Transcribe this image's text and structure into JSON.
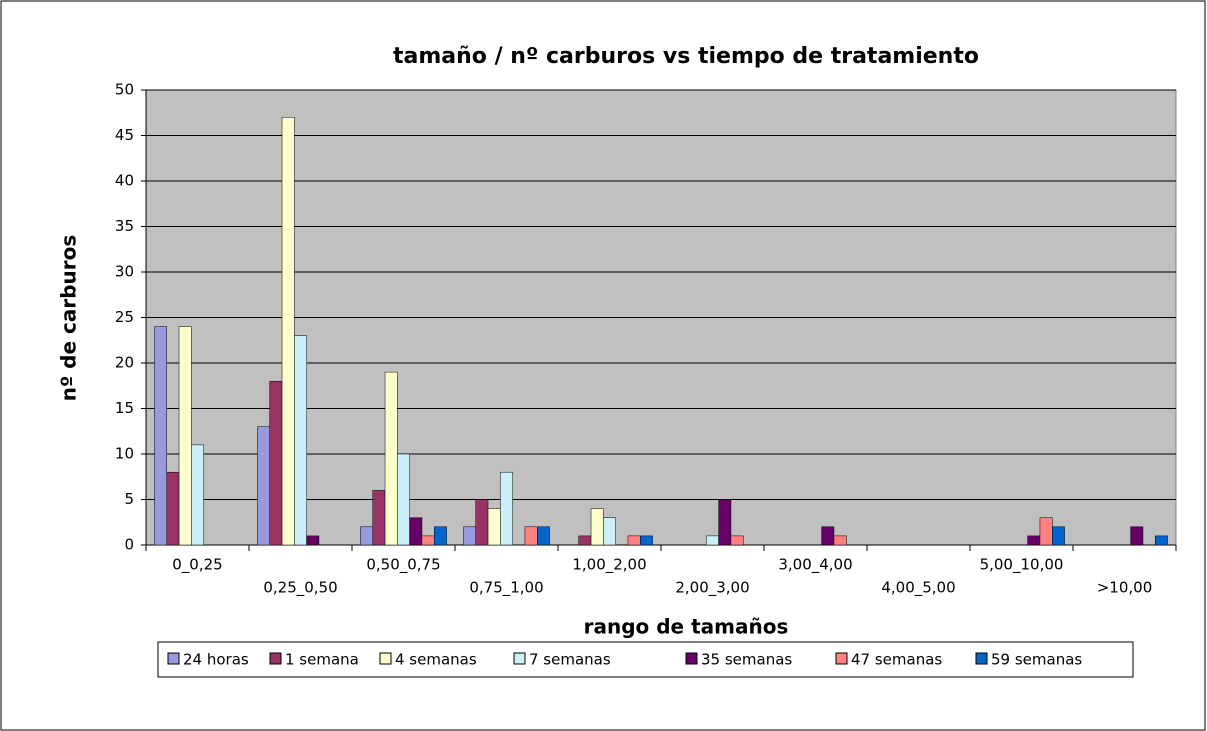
{
  "chart_data": {
    "type": "bar",
    "title": "tamaño / nº carburos vs tiempo de tratamiento",
    "x_label": "rango de tamaños",
    "y_label": "nº de carburos",
    "categories": [
      "0_0,25",
      "0,25_0,50",
      "0,50_0,75",
      "0,75_1,00",
      "1,00_2,00",
      "2,00_3,00",
      "3,00_4,00",
      "4,00_5,00",
      "5,00_10,00",
      ">10,00"
    ],
    "series": [
      {
        "name": "24 horas",
        "color": "#9999dd",
        "values": [
          24,
          13,
          2,
          2,
          0,
          0,
          0,
          0,
          0,
          0
        ]
      },
      {
        "name": "1 semana",
        "color": "#993366",
        "values": [
          8,
          18,
          6,
          5,
          1,
          0,
          0,
          0,
          0,
          0
        ]
      },
      {
        "name": "4 semanas",
        "color": "#ffffcc",
        "values": [
          24,
          47,
          19,
          4,
          4,
          0,
          0,
          0,
          0,
          0
        ]
      },
      {
        "name": "7 semanas",
        "color": "#ccf0f8",
        "values": [
          11,
          23,
          10,
          8,
          3,
          1,
          0,
          0,
          0,
          0
        ]
      },
      {
        "name": "35 semanas",
        "color": "#660066",
        "values": [
          0,
          1,
          3,
          0,
          0,
          5,
          2,
          0,
          1,
          2
        ]
      },
      {
        "name": "47 semanas",
        "color": "#ff8080",
        "values": [
          0,
          0,
          1,
          2,
          1,
          1,
          1,
          0,
          3,
          0
        ]
      },
      {
        "name": "59 semanas",
        "color": "#0066cc",
        "values": [
          0,
          0,
          2,
          2,
          1,
          0,
          0,
          0,
          2,
          1
        ]
      }
    ],
    "ylim": [
      0,
      50
    ],
    "yticks": [
      0,
      5,
      10,
      15,
      20,
      25,
      30,
      35,
      40,
      45,
      50
    ],
    "grid": true,
    "legend": "bottom"
  }
}
